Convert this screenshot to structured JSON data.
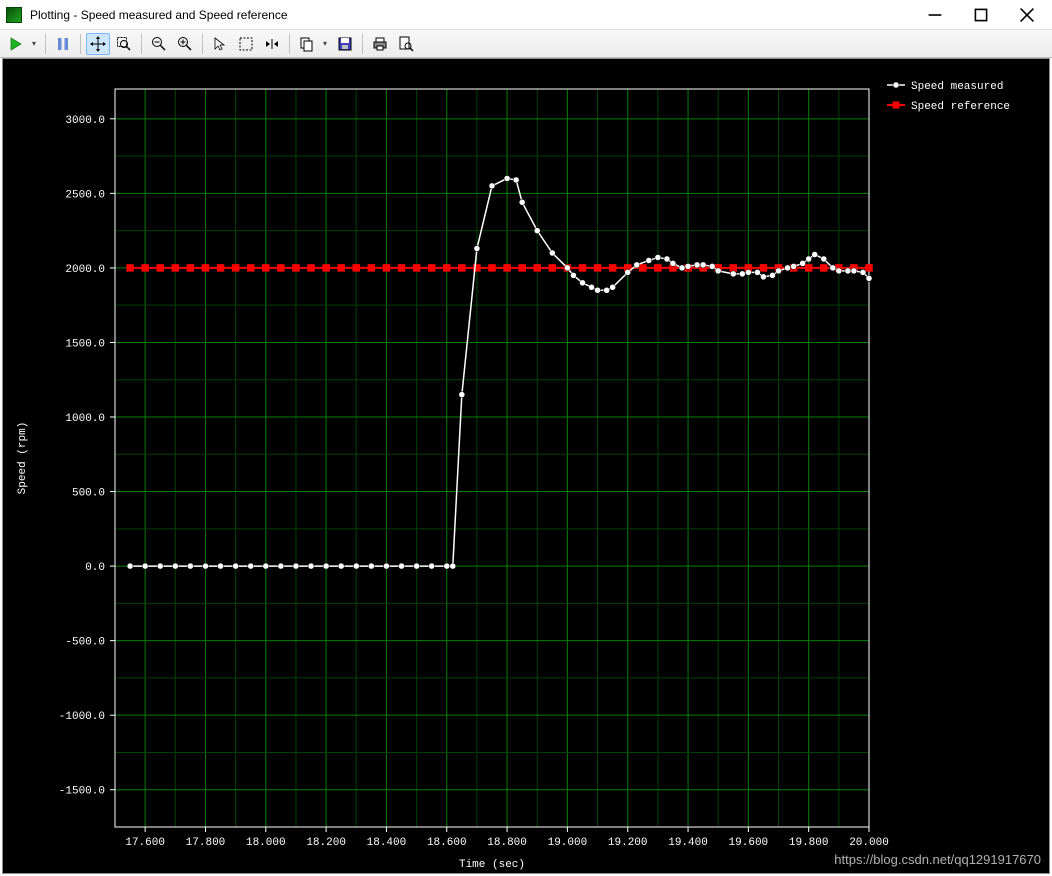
{
  "window": {
    "title": "Plotting  - Speed measured and Speed reference",
    "min_tip": "Minimize",
    "max_tip": "Maximize",
    "close_tip": "Close"
  },
  "toolbar": {
    "buttons": [
      {
        "name": "run",
        "icon": "play-green"
      },
      {
        "name": "run-menu",
        "icon": "caret"
      },
      {
        "name": "pause",
        "icon": "pause"
      },
      {
        "name": "pan",
        "icon": "crosshair",
        "active": true
      },
      {
        "name": "zoom-box",
        "icon": "zoom-box"
      },
      {
        "name": "zoom-out",
        "icon": "zoom-out"
      },
      {
        "name": "zoom-in",
        "icon": "zoom-in"
      },
      {
        "name": "pointer",
        "icon": "arrow"
      },
      {
        "name": "select-rect",
        "icon": "dashed-box"
      },
      {
        "name": "fit",
        "icon": "fit-arrows"
      },
      {
        "name": "copy",
        "icon": "copy"
      },
      {
        "name": "copy-menu",
        "icon": "caret"
      },
      {
        "name": "save",
        "icon": "floppy"
      },
      {
        "name": "print",
        "icon": "printer"
      },
      {
        "name": "preview",
        "icon": "page-lens"
      }
    ]
  },
  "chart": {
    "type": "line",
    "background_color": "#000000",
    "plot_border_color": "#ffffff",
    "grid_color": "#008000",
    "grid_mid_color": "#004000",
    "tick_font_size": 11,
    "xlabel": "Time (sec)",
    "ylabel": "Speed (rpm)",
    "x_ticks": [
      17.6,
      17.8,
      18.0,
      18.2,
      18.4,
      18.6,
      18.8,
      19.0,
      19.2,
      19.4,
      19.6,
      19.8,
      20.0
    ],
    "x_tick_labels": [
      "17.600",
      "17.800",
      "18.000",
      "18.200",
      "18.400",
      "18.600",
      "18.800",
      "19.000",
      "19.200",
      "19.400",
      "19.600",
      "19.800",
      "20.000"
    ],
    "xlim": [
      17.5,
      20.0
    ],
    "y_ticks": [
      -1500,
      -1000,
      -500,
      0,
      500,
      1000,
      1500,
      2000,
      2500,
      3000
    ],
    "y_tick_labels": [
      "-1500.0",
      "-1000.0",
      "-500.0",
      "0.0",
      "500.0",
      "1000.0",
      "1500.0",
      "2000.0",
      "2500.0",
      "3000.0"
    ],
    "ylim": [
      -1750,
      3200
    ],
    "legend": {
      "position": "upper-right-outside",
      "entries": [
        {
          "label": "Speed measured",
          "marker": "circle-white-line"
        },
        {
          "label": "Speed reference",
          "marker": "square-red-line"
        }
      ]
    },
    "series": [
      {
        "name": "Speed measured",
        "color": "#ffffff",
        "marker": "circle",
        "marker_fill": "#ffffff",
        "marker_stroke": "#000000",
        "marker_size": 3,
        "line_width": 1.5,
        "data": [
          [
            17.55,
            0
          ],
          [
            17.6,
            0
          ],
          [
            17.65,
            0
          ],
          [
            17.7,
            0
          ],
          [
            17.75,
            0
          ],
          [
            17.8,
            0
          ],
          [
            17.85,
            0
          ],
          [
            17.9,
            0
          ],
          [
            17.95,
            0
          ],
          [
            18.0,
            0
          ],
          [
            18.05,
            0
          ],
          [
            18.1,
            0
          ],
          [
            18.15,
            0
          ],
          [
            18.2,
            0
          ],
          [
            18.25,
            0
          ],
          [
            18.3,
            0
          ],
          [
            18.35,
            0
          ],
          [
            18.4,
            0
          ],
          [
            18.45,
            0
          ],
          [
            18.5,
            0
          ],
          [
            18.55,
            0
          ],
          [
            18.6,
            0
          ],
          [
            18.62,
            0
          ],
          [
            18.65,
            1150
          ],
          [
            18.7,
            2130
          ],
          [
            18.75,
            2550
          ],
          [
            18.8,
            2600
          ],
          [
            18.83,
            2590
          ],
          [
            18.85,
            2440
          ],
          [
            18.9,
            2250
          ],
          [
            18.95,
            2100
          ],
          [
            19.0,
            2000
          ],
          [
            19.02,
            1950
          ],
          [
            19.05,
            1900
          ],
          [
            19.08,
            1870
          ],
          [
            19.1,
            1850
          ],
          [
            19.13,
            1850
          ],
          [
            19.15,
            1870
          ],
          [
            19.2,
            1970
          ],
          [
            19.23,
            2020
          ],
          [
            19.27,
            2050
          ],
          [
            19.3,
            2070
          ],
          [
            19.33,
            2060
          ],
          [
            19.35,
            2030
          ],
          [
            19.38,
            2000
          ],
          [
            19.4,
            2010
          ],
          [
            19.43,
            2020
          ],
          [
            19.45,
            2020
          ],
          [
            19.48,
            2010
          ],
          [
            19.5,
            1980
          ],
          [
            19.55,
            1960
          ],
          [
            19.58,
            1960
          ],
          [
            19.6,
            1970
          ],
          [
            19.63,
            1970
          ],
          [
            19.65,
            1940
          ],
          [
            19.68,
            1950
          ],
          [
            19.7,
            1980
          ],
          [
            19.73,
            2000
          ],
          [
            19.75,
            2010
          ],
          [
            19.78,
            2030
          ],
          [
            19.8,
            2060
          ],
          [
            19.82,
            2090
          ],
          [
            19.85,
            2060
          ],
          [
            19.88,
            2000
          ],
          [
            19.9,
            1980
          ],
          [
            19.93,
            1980
          ],
          [
            19.95,
            1980
          ],
          [
            19.98,
            1970
          ],
          [
            20.0,
            1930
          ]
        ]
      },
      {
        "name": "Speed reference",
        "color": "#ff0000",
        "marker": "square",
        "marker_fill": "#ff0000",
        "marker_stroke": "#ff0000",
        "marker_size": 3.5,
        "line_width": 2,
        "data": [
          [
            17.55,
            2000
          ],
          [
            17.6,
            2000
          ],
          [
            17.65,
            2000
          ],
          [
            17.7,
            2000
          ],
          [
            17.75,
            2000
          ],
          [
            17.8,
            2000
          ],
          [
            17.85,
            2000
          ],
          [
            17.9,
            2000
          ],
          [
            17.95,
            2000
          ],
          [
            18.0,
            2000
          ],
          [
            18.05,
            2000
          ],
          [
            18.1,
            2000
          ],
          [
            18.15,
            2000
          ],
          [
            18.2,
            2000
          ],
          [
            18.25,
            2000
          ],
          [
            18.3,
            2000
          ],
          [
            18.35,
            2000
          ],
          [
            18.4,
            2000
          ],
          [
            18.45,
            2000
          ],
          [
            18.5,
            2000
          ],
          [
            18.55,
            2000
          ],
          [
            18.6,
            2000
          ],
          [
            18.65,
            2000
          ],
          [
            18.7,
            2000
          ],
          [
            18.75,
            2000
          ],
          [
            18.8,
            2000
          ],
          [
            18.85,
            2000
          ],
          [
            18.9,
            2000
          ],
          [
            18.95,
            2000
          ],
          [
            19.0,
            2000
          ],
          [
            19.05,
            2000
          ],
          [
            19.1,
            2000
          ],
          [
            19.15,
            2000
          ],
          [
            19.2,
            2000
          ],
          [
            19.25,
            2000
          ],
          [
            19.3,
            2000
          ],
          [
            19.35,
            2000
          ],
          [
            19.4,
            2000
          ],
          [
            19.45,
            2000
          ],
          [
            19.5,
            2000
          ],
          [
            19.55,
            2000
          ],
          [
            19.6,
            2000
          ],
          [
            19.65,
            2000
          ],
          [
            19.7,
            2000
          ],
          [
            19.75,
            2000
          ],
          [
            19.8,
            2000
          ],
          [
            19.85,
            2000
          ],
          [
            19.9,
            2000
          ],
          [
            19.95,
            2000
          ],
          [
            20.0,
            2000
          ]
        ]
      }
    ]
  },
  "watermark": "https://blog.csdn.net/qq1291917670"
}
